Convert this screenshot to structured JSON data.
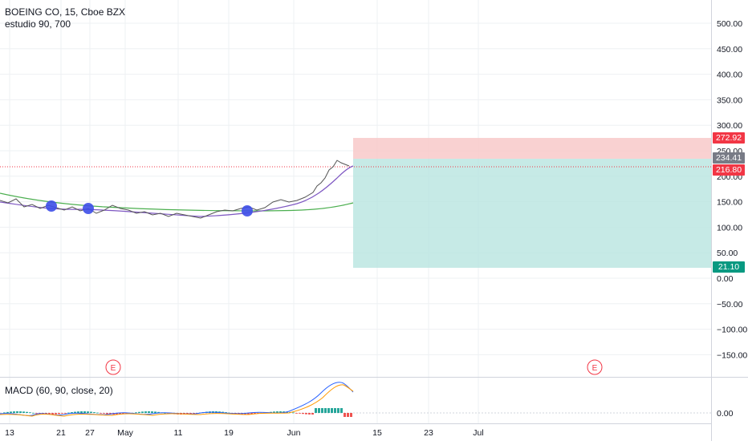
{
  "header": {
    "symbol_title": "BOEING CO, 15, Cboe BZX",
    "study_label": "estudio 90, 700"
  },
  "macd": {
    "label": "MACD (60, 90, close, 20)",
    "zero_label": "0.00"
  },
  "price_axis": {
    "ticks": [
      "500.00",
      "450.00",
      "400.00",
      "350.00",
      "300.00",
      "250.00",
      "200.00",
      "150.00",
      "100.00",
      "50.00",
      "0.00",
      "−50.00",
      "−100.00",
      "−150.00"
    ]
  },
  "time_axis": {
    "labels": [
      "13",
      "21",
      "27",
      "May",
      "11",
      "19",
      "Jun",
      "15",
      "23",
      "Jul"
    ]
  },
  "price_tags": {
    "stop_loss": "272.92",
    "entry": "234.41",
    "last_price": "216.80",
    "target": "21.10"
  },
  "earnings_badges": [
    "E",
    "E"
  ],
  "colors": {
    "stop_zone": "#f7c6c6",
    "target_zone": "#b8e5e0",
    "stop_tag": "#f23645",
    "entry_tag": "#787b86",
    "last_tag": "#f23645",
    "target_tag": "#089981",
    "ma_fast": "#7e57c2",
    "ma_slow": "#4caf50",
    "marker": "#3d4ee8"
  },
  "chart_data": {
    "type": "line",
    "price_levels": {
      "stop_loss": 272.92,
      "entry": 234.41,
      "last_price": 216.8,
      "target": 21.1
    },
    "y_range": [
      -175,
      545
    ],
    "markers": [
      {
        "x": "Apr 20",
        "value": 140
      },
      {
        "x": "Apr 27",
        "value": 137
      },
      {
        "x": "May 21",
        "value": 133
      }
    ],
    "series": []
  }
}
